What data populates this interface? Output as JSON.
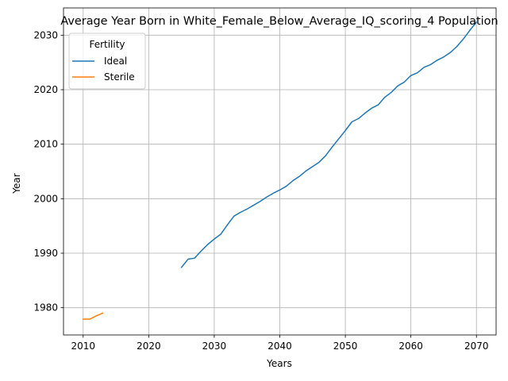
{
  "chart_data": {
    "type": "line",
    "title": "Average Year Born in White_Female_Below_Average_IQ_scoring_4 Population",
    "xlabel": "Years",
    "ylabel": "Year",
    "xlim": [
      2007,
      2073
    ],
    "ylim": [
      1975,
      2035
    ],
    "xticks": [
      2010,
      2020,
      2030,
      2040,
      2050,
      2060,
      2070
    ],
    "yticks": [
      1980,
      1990,
      2000,
      2010,
      2020,
      2030
    ],
    "grid": true,
    "legend": {
      "title": "Fertility",
      "placement": "upper-left"
    },
    "series": [
      {
        "name": "Ideal",
        "color": "#1f77b4",
        "x": [
          2025,
          2026,
          2027,
          2028,
          2029,
          2030,
          2031,
          2032,
          2033,
          2034,
          2035,
          2036,
          2037,
          2038,
          2039,
          2040,
          2041,
          2042,
          2043,
          2044,
          2045,
          2046,
          2047,
          2048,
          2049,
          2050,
          2051,
          2052,
          2053,
          2054,
          2055,
          2056,
          2057,
          2058,
          2059,
          2060,
          2061,
          2062,
          2063,
          2064,
          2065,
          2066,
          2067,
          2068,
          2069,
          2070
        ],
        "y": [
          1987.4,
          1988.9,
          1989.1,
          1990.4,
          1991.6,
          1992.6,
          1993.5,
          1995.2,
          1996.8,
          1997.5,
          1998.1,
          1998.8,
          1999.5,
          2000.3,
          2001.0,
          2001.6,
          2002.3,
          2003.3,
          2004.1,
          2005.1,
          2005.9,
          2006.7,
          2007.9,
          2009.5,
          2011.0,
          2012.5,
          2014.1,
          2014.7,
          2015.7,
          2016.6,
          2017.2,
          2018.6,
          2019.5,
          2020.7,
          2021.4,
          2022.6,
          2023.1,
          2024.1,
          2024.6,
          2025.4,
          2026.0,
          2026.8,
          2027.9,
          2029.3,
          2030.9,
          2032.4
        ]
      },
      {
        "name": "Sterile",
        "color": "#ff7f0e",
        "x": [
          2010,
          2011,
          2012,
          2013
        ],
        "y": [
          1977.9,
          1977.9,
          1978.5,
          1979.0
        ]
      }
    ]
  }
}
